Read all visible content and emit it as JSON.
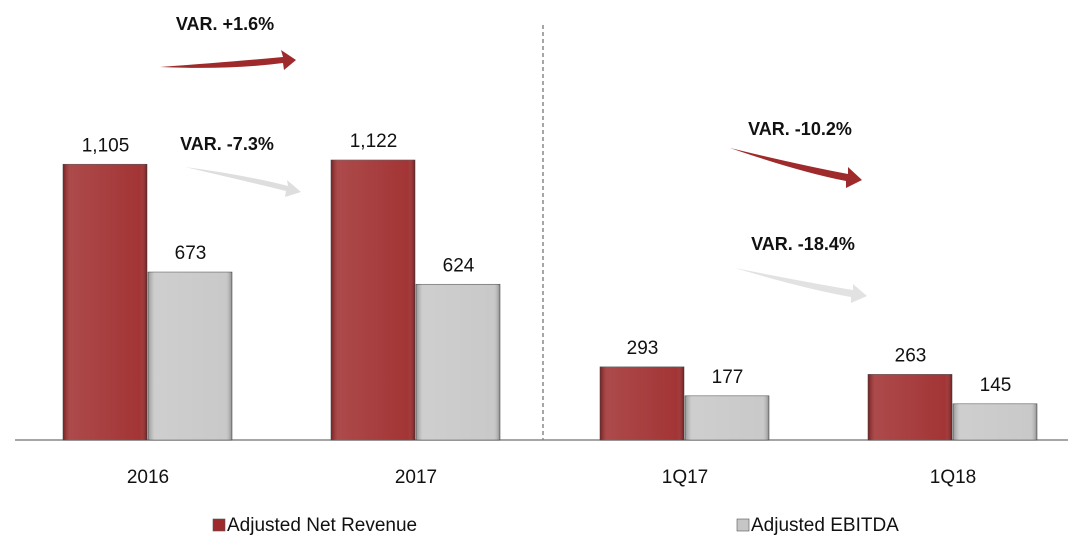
{
  "chart_data": {
    "type": "bar",
    "categories": [
      "2016",
      "2017",
      "1Q17",
      "1Q18"
    ],
    "series": [
      {
        "name": "Adjusted Net Revenue",
        "color": "#9e2a2b",
        "values": [
          1105,
          1122,
          293,
          263
        ],
        "value_labels": [
          "1,105",
          "1,122",
          "293",
          "263"
        ]
      },
      {
        "name": "Adjusted EBITDA",
        "color": "#c6c6c6",
        "values": [
          673,
          624,
          177,
          145
        ]
      }
    ],
    "annotations": [
      "VAR. +1.6%",
      "VAR. -7.3%",
      "VAR. -10.2%",
      "VAR. -18.4%"
    ],
    "legend": "bottom"
  }
}
